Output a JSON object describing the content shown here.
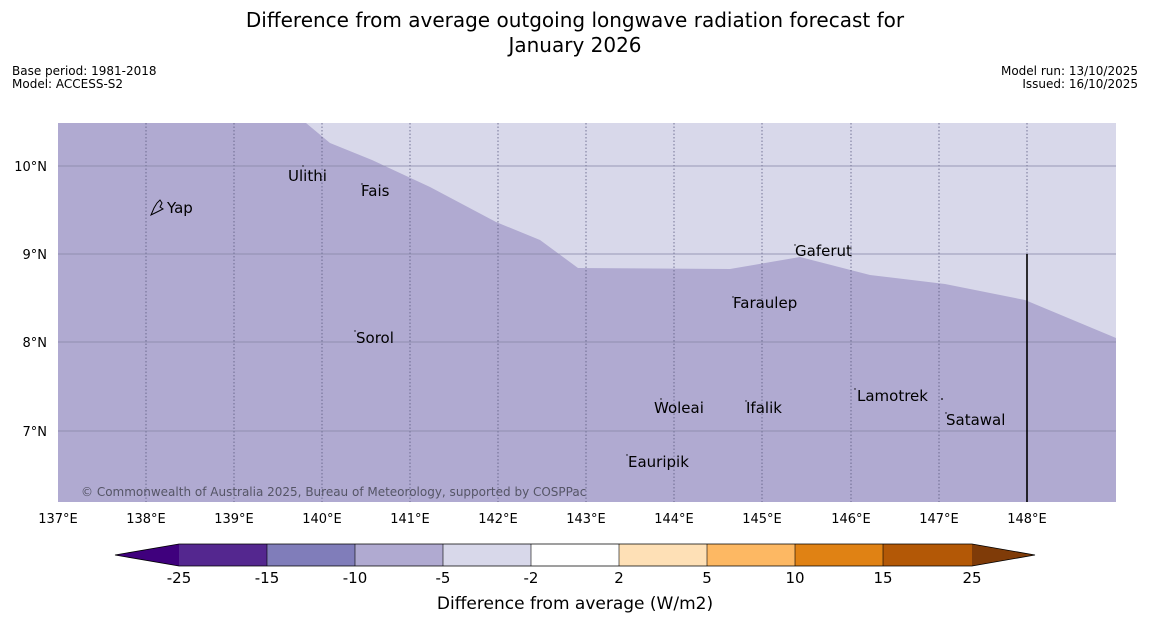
{
  "title": {
    "line1": "Difference from average outgoing longwave radiation forecast for",
    "line2": "January 2026"
  },
  "meta_left": {
    "base_period": "Base period: 1981-2018",
    "model": "Model: ACCESS-S2"
  },
  "meta_right": {
    "model_run": "Model run: 13/10/2025",
    "issued": "Issued: 16/10/2025"
  },
  "map": {
    "lon_labels": [
      "137°E",
      "138°E",
      "139°E",
      "140°E",
      "141°E",
      "142°E",
      "143°E",
      "144°E",
      "145°E",
      "146°E",
      "147°E",
      "148°E"
    ],
    "lat_labels": [
      "10°N",
      "9°N",
      "8°N",
      "7°N"
    ],
    "places": [
      "Yap",
      "Ulithi",
      "Fais",
      "Gaferut",
      "Faraulep",
      "Sorol",
      "Woleai",
      "Ifalik",
      "Lamotrek",
      "Satawal",
      "Eauripik"
    ],
    "copyright": "© Commonwealth of Australia 2025, Bureau of Meteorology, supported by COSPPac",
    "colors": {
      "minus_10_to_minus_5": "#b0aad1",
      "minus_5_to_minus_2": "#d8d8ea",
      "gridline": "#7a7a9a"
    }
  },
  "colorbar": {
    "tick_labels": [
      "-25",
      "-15",
      "-10",
      "-5",
      "-2",
      "2",
      "5",
      "10",
      "15",
      "25"
    ],
    "colors": [
      "#3f007d",
      "#54278f",
      "#807dba",
      "#b0aad1",
      "#d8d8ea",
      "#ffffff",
      "#fee0b6",
      "#fdb863",
      "#e08214",
      "#b35806",
      "#7f3b08"
    ],
    "label": "Difference from average (W/m2)"
  }
}
